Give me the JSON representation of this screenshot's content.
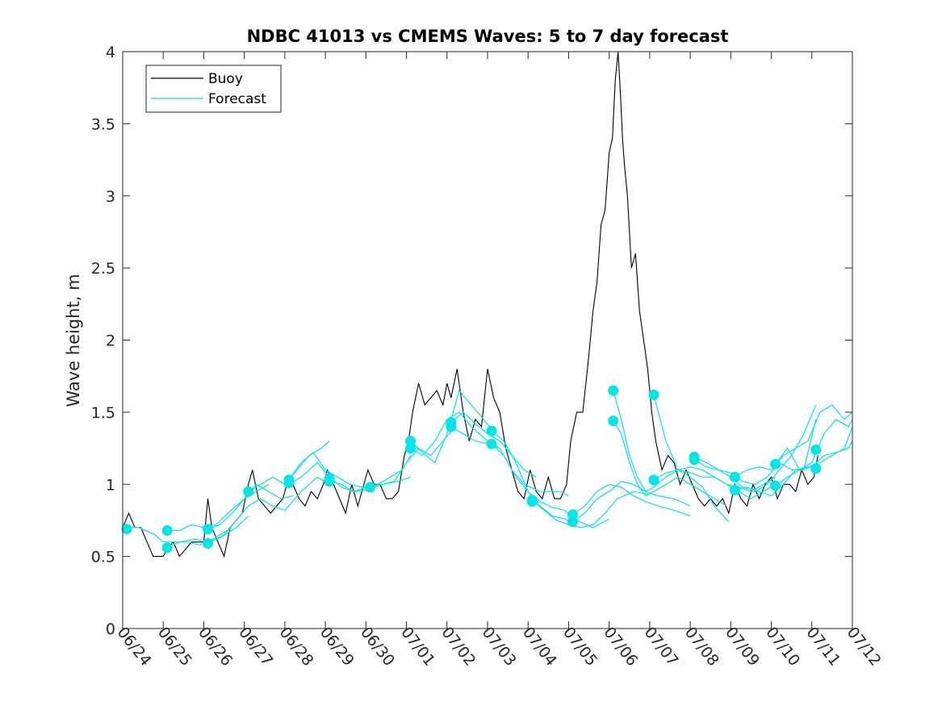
{
  "chart_data": {
    "type": "line",
    "title": "NDBC 41013 vs CMEMS Waves: 5 to 7 day forecast",
    "xlabel": "",
    "ylabel": "Wave height, m",
    "xlim": [
      0,
      18
    ],
    "ylim": [
      0,
      4
    ],
    "x_ticks": [
      0,
      1,
      2,
      3,
      4,
      5,
      6,
      7,
      8,
      9,
      10,
      11,
      12,
      13,
      14,
      15,
      16,
      17,
      18
    ],
    "x_tick_labels": [
      "06/24",
      "06/25",
      "06/26",
      "06/27",
      "06/28",
      "06/29",
      "06/30",
      "07/01",
      "07/02",
      "07/03",
      "07/04",
      "07/05",
      "07/06",
      "07/07",
      "07/08",
      "07/09",
      "07/10",
      "07/11",
      "07/12"
    ],
    "y_ticks": [
      0,
      0.5,
      1,
      1.5,
      2,
      2.5,
      3,
      3.5,
      4
    ],
    "y_tick_labels": [
      "0",
      "0.5",
      "1",
      "1.5",
      "2",
      "2.5",
      "3",
      "3.5",
      "4"
    ],
    "grid": false,
    "legend": {
      "placement": "top-left",
      "entries": [
        "Buoy",
        "Forecast"
      ]
    },
    "colors": {
      "buoy": "#000000",
      "forecast": "#00e5e5",
      "axis": "#262626"
    },
    "buoy": {
      "x": [
        0,
        0.15,
        0.3,
        0.45,
        0.6,
        0.75,
        0.9,
        1.0,
        1.1,
        1.25,
        1.4,
        1.55,
        1.7,
        1.85,
        2.0,
        2.1,
        2.2,
        2.35,
        2.5,
        2.65,
        2.8,
        2.95,
        3.1,
        3.2,
        3.35,
        3.5,
        3.65,
        3.8,
        3.95,
        4.05,
        4.2,
        4.35,
        4.5,
        4.65,
        4.8,
        4.95,
        5.05,
        5.2,
        5.35,
        5.5,
        5.65,
        5.8,
        5.95,
        6.05,
        6.2,
        6.35,
        6.5,
        6.65,
        6.8,
        6.95,
        7.05,
        7.15,
        7.3,
        7.45,
        7.6,
        7.75,
        7.9,
        8.0,
        8.1,
        8.25,
        8.4,
        8.55,
        8.7,
        8.85,
        9.0,
        9.15,
        9.3,
        9.45,
        9.6,
        9.75,
        9.9,
        10.05,
        10.2,
        10.35,
        10.5,
        10.65,
        10.8,
        10.95,
        11.05,
        11.2,
        11.35,
        11.5,
        11.6,
        11.7,
        11.8,
        11.9,
        12.0,
        12.08,
        12.15,
        12.22,
        12.28,
        12.33,
        12.38,
        12.45,
        12.55,
        12.65,
        12.75,
        12.85,
        12.95,
        13.05,
        13.15,
        13.3,
        13.45,
        13.6,
        13.75,
        13.9,
        14.05,
        14.2,
        14.35,
        14.5,
        14.65,
        14.8,
        14.95,
        15.1,
        15.25,
        15.4,
        15.55,
        15.7,
        15.85,
        16.0,
        16.15,
        16.3,
        16.45,
        16.6,
        16.75,
        16.9,
        17.05,
        17.15
      ],
      "y": [
        0.7,
        0.8,
        0.7,
        0.7,
        0.6,
        0.5,
        0.5,
        0.5,
        0.55,
        0.6,
        0.5,
        0.55,
        0.6,
        0.6,
        0.6,
        0.9,
        0.7,
        0.6,
        0.5,
        0.7,
        0.75,
        0.8,
        1.0,
        1.1,
        0.9,
        0.85,
        0.8,
        0.85,
        0.9,
        1.0,
        1.0,
        0.9,
        0.85,
        0.95,
        0.9,
        1.0,
        1.1,
        1.0,
        0.9,
        0.8,
        1.0,
        0.85,
        1.0,
        1.1,
        1.0,
        1.0,
        0.9,
        0.9,
        0.95,
        1.2,
        1.3,
        1.5,
        1.7,
        1.55,
        1.6,
        1.65,
        1.55,
        1.7,
        1.6,
        1.8,
        1.5,
        1.3,
        1.45,
        1.4,
        1.8,
        1.6,
        1.5,
        1.25,
        1.1,
        0.95,
        0.9,
        1.1,
        0.95,
        0.9,
        1.05,
        0.9,
        0.9,
        1.0,
        1.3,
        1.5,
        1.5,
        1.9,
        2.2,
        2.4,
        2.8,
        2.9,
        3.3,
        3.4,
        3.8,
        4.0,
        3.7,
        3.4,
        3.2,
        3.0,
        2.5,
        2.6,
        2.2,
        2.0,
        1.8,
        1.5,
        1.3,
        1.1,
        1.2,
        1.15,
        1.0,
        1.1,
        1.0,
        0.9,
        0.85,
        0.9,
        0.85,
        0.9,
        0.8,
        1.0,
        0.9,
        0.85,
        1.0,
        0.9,
        1.0,
        1.05,
        0.9,
        1.0,
        1.0,
        0.95,
        1.1,
        1.0,
        1.05,
        1.2
      ]
    },
    "forecast_segments": [
      {
        "x": [
          0,
          0.4,
          0.8,
          1.0,
          1.3,
          1.6,
          1.9,
          2.1,
          2.4,
          2.7
        ],
        "y": [
          0.7,
          0.7,
          0.65,
          0.6,
          0.6,
          0.6,
          0.58,
          0.6,
          0.65,
          0.7
        ]
      },
      {
        "x": [
          1.1,
          1.4,
          1.7,
          2.0,
          2.3,
          2.6,
          3.0,
          3.3,
          3.6
        ],
        "y": [
          0.68,
          0.68,
          0.72,
          0.7,
          0.72,
          0.8,
          0.9,
          0.95,
          1.0
        ]
      },
      {
        "x": [
          1.1,
          1.4,
          1.8,
          2.1,
          2.4,
          2.8,
          3.1
        ],
        "y": [
          0.56,
          0.6,
          0.62,
          0.6,
          0.63,
          0.7,
          0.78
        ]
      },
      {
        "x": [
          2.1,
          2.4,
          2.7,
          3.0,
          3.3,
          3.6,
          3.9,
          4.2
        ],
        "y": [
          0.69,
          0.72,
          0.8,
          0.9,
          1.0,
          0.95,
          0.9,
          0.92
        ]
      },
      {
        "x": [
          2.1,
          2.5,
          2.8,
          3.1,
          3.4,
          3.7,
          4.0,
          4.4,
          4.8,
          5.1
        ],
        "y": [
          0.59,
          0.65,
          0.75,
          0.85,
          0.9,
          0.85,
          0.82,
          0.95,
          1.05,
          1.0
        ]
      },
      {
        "x": [
          3.1,
          3.4,
          3.7,
          4.0,
          4.3,
          4.6,
          4.9,
          5.1
        ],
        "y": [
          0.95,
          1.0,
          1.05,
          1.0,
          1.1,
          1.2,
          1.25,
          1.3
        ]
      },
      {
        "x": [
          4.1,
          4.4,
          4.7,
          5.0,
          5.3,
          5.6,
          5.9,
          6.2
        ],
        "y": [
          1.03,
          1.15,
          1.22,
          1.1,
          1.05,
          1.0,
          0.98,
          0.95
        ]
      },
      {
        "x": [
          4.1,
          4.4,
          4.8,
          5.1,
          5.4,
          5.7,
          6.0,
          6.4,
          6.8,
          7.1
        ],
        "y": [
          1.0,
          1.05,
          1.15,
          1.05,
          0.98,
          0.95,
          0.96,
          1.0,
          1.02,
          1.05
        ]
      },
      {
        "x": [
          5.1,
          5.4,
          5.7,
          6.0,
          6.3,
          6.6,
          6.9,
          7.1
        ],
        "y": [
          1.02,
          1.0,
          0.95,
          0.98,
          1.0,
          1.05,
          1.1,
          1.2
        ]
      },
      {
        "x": [
          6.1,
          6.4,
          6.7,
          7.0,
          7.3,
          7.6,
          7.9,
          8.2
        ],
        "y": [
          0.98,
          1.0,
          1.02,
          1.15,
          1.25,
          1.2,
          1.3,
          1.4
        ]
      },
      {
        "x": [
          7.1,
          7.4,
          7.7,
          8.0,
          8.3,
          8.6,
          8.9,
          9.2
        ],
        "y": [
          1.3,
          1.22,
          1.15,
          1.35,
          1.65,
          1.55,
          1.45,
          1.35
        ]
      },
      {
        "x": [
          7.1,
          7.4,
          7.7,
          8.0,
          8.3,
          8.6,
          9.0,
          9.3
        ],
        "y": [
          1.25,
          1.2,
          1.3,
          1.45,
          1.5,
          1.4,
          1.3,
          1.25
        ]
      },
      {
        "x": [
          8.1,
          8.4,
          8.7,
          9.0,
          9.3,
          9.6,
          9.9,
          10.2
        ],
        "y": [
          1.43,
          1.5,
          1.42,
          1.35,
          1.3,
          1.2,
          1.1,
          1.05
        ]
      },
      {
        "x": [
          8.1,
          8.4,
          8.7,
          9.0,
          9.3,
          9.6,
          9.9,
          10.3,
          10.8,
          11.0
        ],
        "y": [
          1.4,
          1.35,
          1.3,
          1.28,
          1.25,
          1.1,
          1.0,
          0.95,
          0.95,
          0.92
        ]
      },
      {
        "x": [
          9.1,
          9.4,
          9.7,
          10.0,
          10.3,
          10.6,
          10.9,
          11.2
        ],
        "y": [
          1.37,
          1.3,
          1.15,
          0.95,
          0.85,
          0.78,
          0.76,
          0.72
        ]
      },
      {
        "x": [
          9.1,
          9.4,
          9.7,
          10.0,
          10.3,
          10.6,
          10.9,
          11.2,
          11.6,
          12.0
        ],
        "y": [
          1.28,
          1.2,
          1.05,
          0.95,
          0.88,
          0.84,
          0.82,
          0.75,
          0.7,
          0.76
        ]
      },
      {
        "x": [
          10.1,
          10.4,
          10.7,
          11.0,
          11.3,
          11.6,
          11.9,
          12.2,
          12.6,
          13.0
        ],
        "y": [
          0.89,
          0.82,
          0.75,
          0.72,
          0.7,
          0.72,
          0.8,
          0.9,
          0.95,
          0.93
        ]
      },
      {
        "x": [
          11.1,
          11.4,
          11.7,
          12.0,
          12.3,
          12.6,
          12.9,
          13.2,
          13.6,
          14.0
        ],
        "y": [
          0.79,
          0.85,
          0.95,
          1.0,
          0.98,
          0.92,
          0.88,
          0.85,
          0.82,
          0.78
        ]
      },
      {
        "x": [
          11.1,
          11.4,
          11.7,
          12.0,
          12.3,
          12.6,
          12.9,
          13.2,
          13.6,
          14.0
        ],
        "y": [
          0.74,
          0.8,
          0.9,
          0.95,
          1.02,
          1.0,
          0.95,
          0.92,
          0.9,
          0.85
        ]
      },
      {
        "x": [
          12.1,
          12.3,
          12.5,
          12.7,
          12.9,
          13.1,
          13.4,
          13.7,
          14.0,
          14.3,
          14.6,
          14.9
        ],
        "y": [
          1.44,
          1.35,
          1.15,
          1.0,
          0.92,
          0.95,
          1.0,
          1.05,
          1.0,
          0.95,
          0.9,
          0.85
        ]
      },
      {
        "x": [
          12.1,
          12.3,
          12.5,
          12.7,
          12.9,
          13.1,
          13.4,
          13.7,
          14.0,
          14.3,
          14.6,
          14.95
        ],
        "y": [
          1.65,
          1.45,
          1.2,
          1.05,
          0.95,
          0.98,
          1.05,
          1.1,
          1.05,
          0.98,
          0.85,
          0.74
        ]
      },
      {
        "x": [
          13.1,
          13.4,
          13.7,
          14.0,
          14.3,
          14.6,
          14.9,
          15.2,
          15.5,
          15.8,
          16.1
        ],
        "y": [
          1.62,
          1.3,
          1.1,
          1.08,
          1.05,
          1.05,
          1.0,
          0.95,
          0.9,
          0.95,
          1.0
        ]
      },
      {
        "x": [
          13.1,
          13.4,
          13.7,
          14.0,
          14.3,
          14.6,
          14.9,
          15.2,
          15.5,
          15.8,
          16.1
        ],
        "y": [
          1.03,
          1.08,
          1.1,
          1.12,
          1.1,
          1.05,
          1.0,
          0.98,
          0.95,
          1.0,
          1.05
        ]
      },
      {
        "x": [
          14.1,
          14.4,
          14.7,
          15.0,
          15.3,
          15.6,
          15.9,
          16.2,
          16.5,
          16.8,
          17.1
        ],
        "y": [
          1.19,
          1.15,
          1.1,
          1.05,
          0.98,
          0.95,
          1.0,
          1.1,
          1.2,
          1.35,
          1.55
        ]
      },
      {
        "x": [
          14.1,
          14.4,
          14.7,
          15.0,
          15.3,
          15.6,
          15.9,
          16.2,
          16.5,
          16.8,
          17.1
        ],
        "y": [
          1.17,
          1.12,
          1.1,
          1.08,
          1.02,
          1.0,
          1.05,
          1.15,
          1.1,
          1.1,
          1.45
        ]
      },
      {
        "x": [
          15.1,
          15.4,
          15.7,
          16.0,
          16.3,
          16.6,
          16.9,
          17.2,
          17.5,
          17.8,
          18.0
        ],
        "y": [
          1.05,
          1.1,
          1.12,
          1.1,
          1.2,
          1.25,
          1.3,
          1.5,
          1.55,
          1.45,
          1.5
        ]
      },
      {
        "x": [
          15.1,
          15.4,
          15.7,
          16.0,
          16.3,
          16.6,
          16.9,
          17.2,
          17.5,
          17.8,
          18.0
        ],
        "y": [
          0.96,
          0.98,
          0.95,
          0.92,
          1.0,
          1.1,
          1.12,
          1.15,
          1.2,
          1.25,
          1.4
        ]
      },
      {
        "x": [
          16.1,
          16.4,
          16.7,
          17.0,
          17.3,
          17.6,
          17.9,
          18.0
        ],
        "y": [
          0.99,
          1.05,
          1.1,
          1.12,
          1.2,
          1.22,
          1.25,
          1.3
        ]
      },
      {
        "x": [
          16.1,
          16.4,
          16.7,
          17.0,
          17.3,
          17.6,
          17.9,
          18.0
        ],
        "y": [
          1.14,
          1.25,
          1.1,
          1.15,
          1.35,
          1.45,
          1.4,
          1.45
        ]
      }
    ],
    "forecast_points": {
      "x": [
        0.1,
        1.1,
        1.1,
        2.1,
        2.1,
        3.1,
        4.1,
        4.1,
        5.1,
        5.1,
        6.1,
        7.1,
        7.1,
        8.1,
        8.1,
        9.1,
        9.1,
        10.1,
        10.1,
        11.1,
        11.1,
        12.1,
        12.1,
        13.1,
        13.1,
        14.1,
        14.1,
        15.1,
        15.1,
        16.1,
        16.1,
        17.1,
        17.1
      ],
      "y": [
        0.69,
        0.68,
        0.56,
        0.69,
        0.59,
        0.95,
        1.03,
        1.01,
        1.04,
        1.02,
        0.98,
        1.3,
        1.25,
        1.43,
        1.4,
        1.37,
        1.28,
        0.89,
        0.88,
        0.79,
        0.74,
        1.65,
        1.44,
        1.62,
        1.03,
        1.19,
        1.17,
        1.05,
        0.96,
        1.14,
        0.99,
        1.24,
        1.11
      ]
    }
  }
}
